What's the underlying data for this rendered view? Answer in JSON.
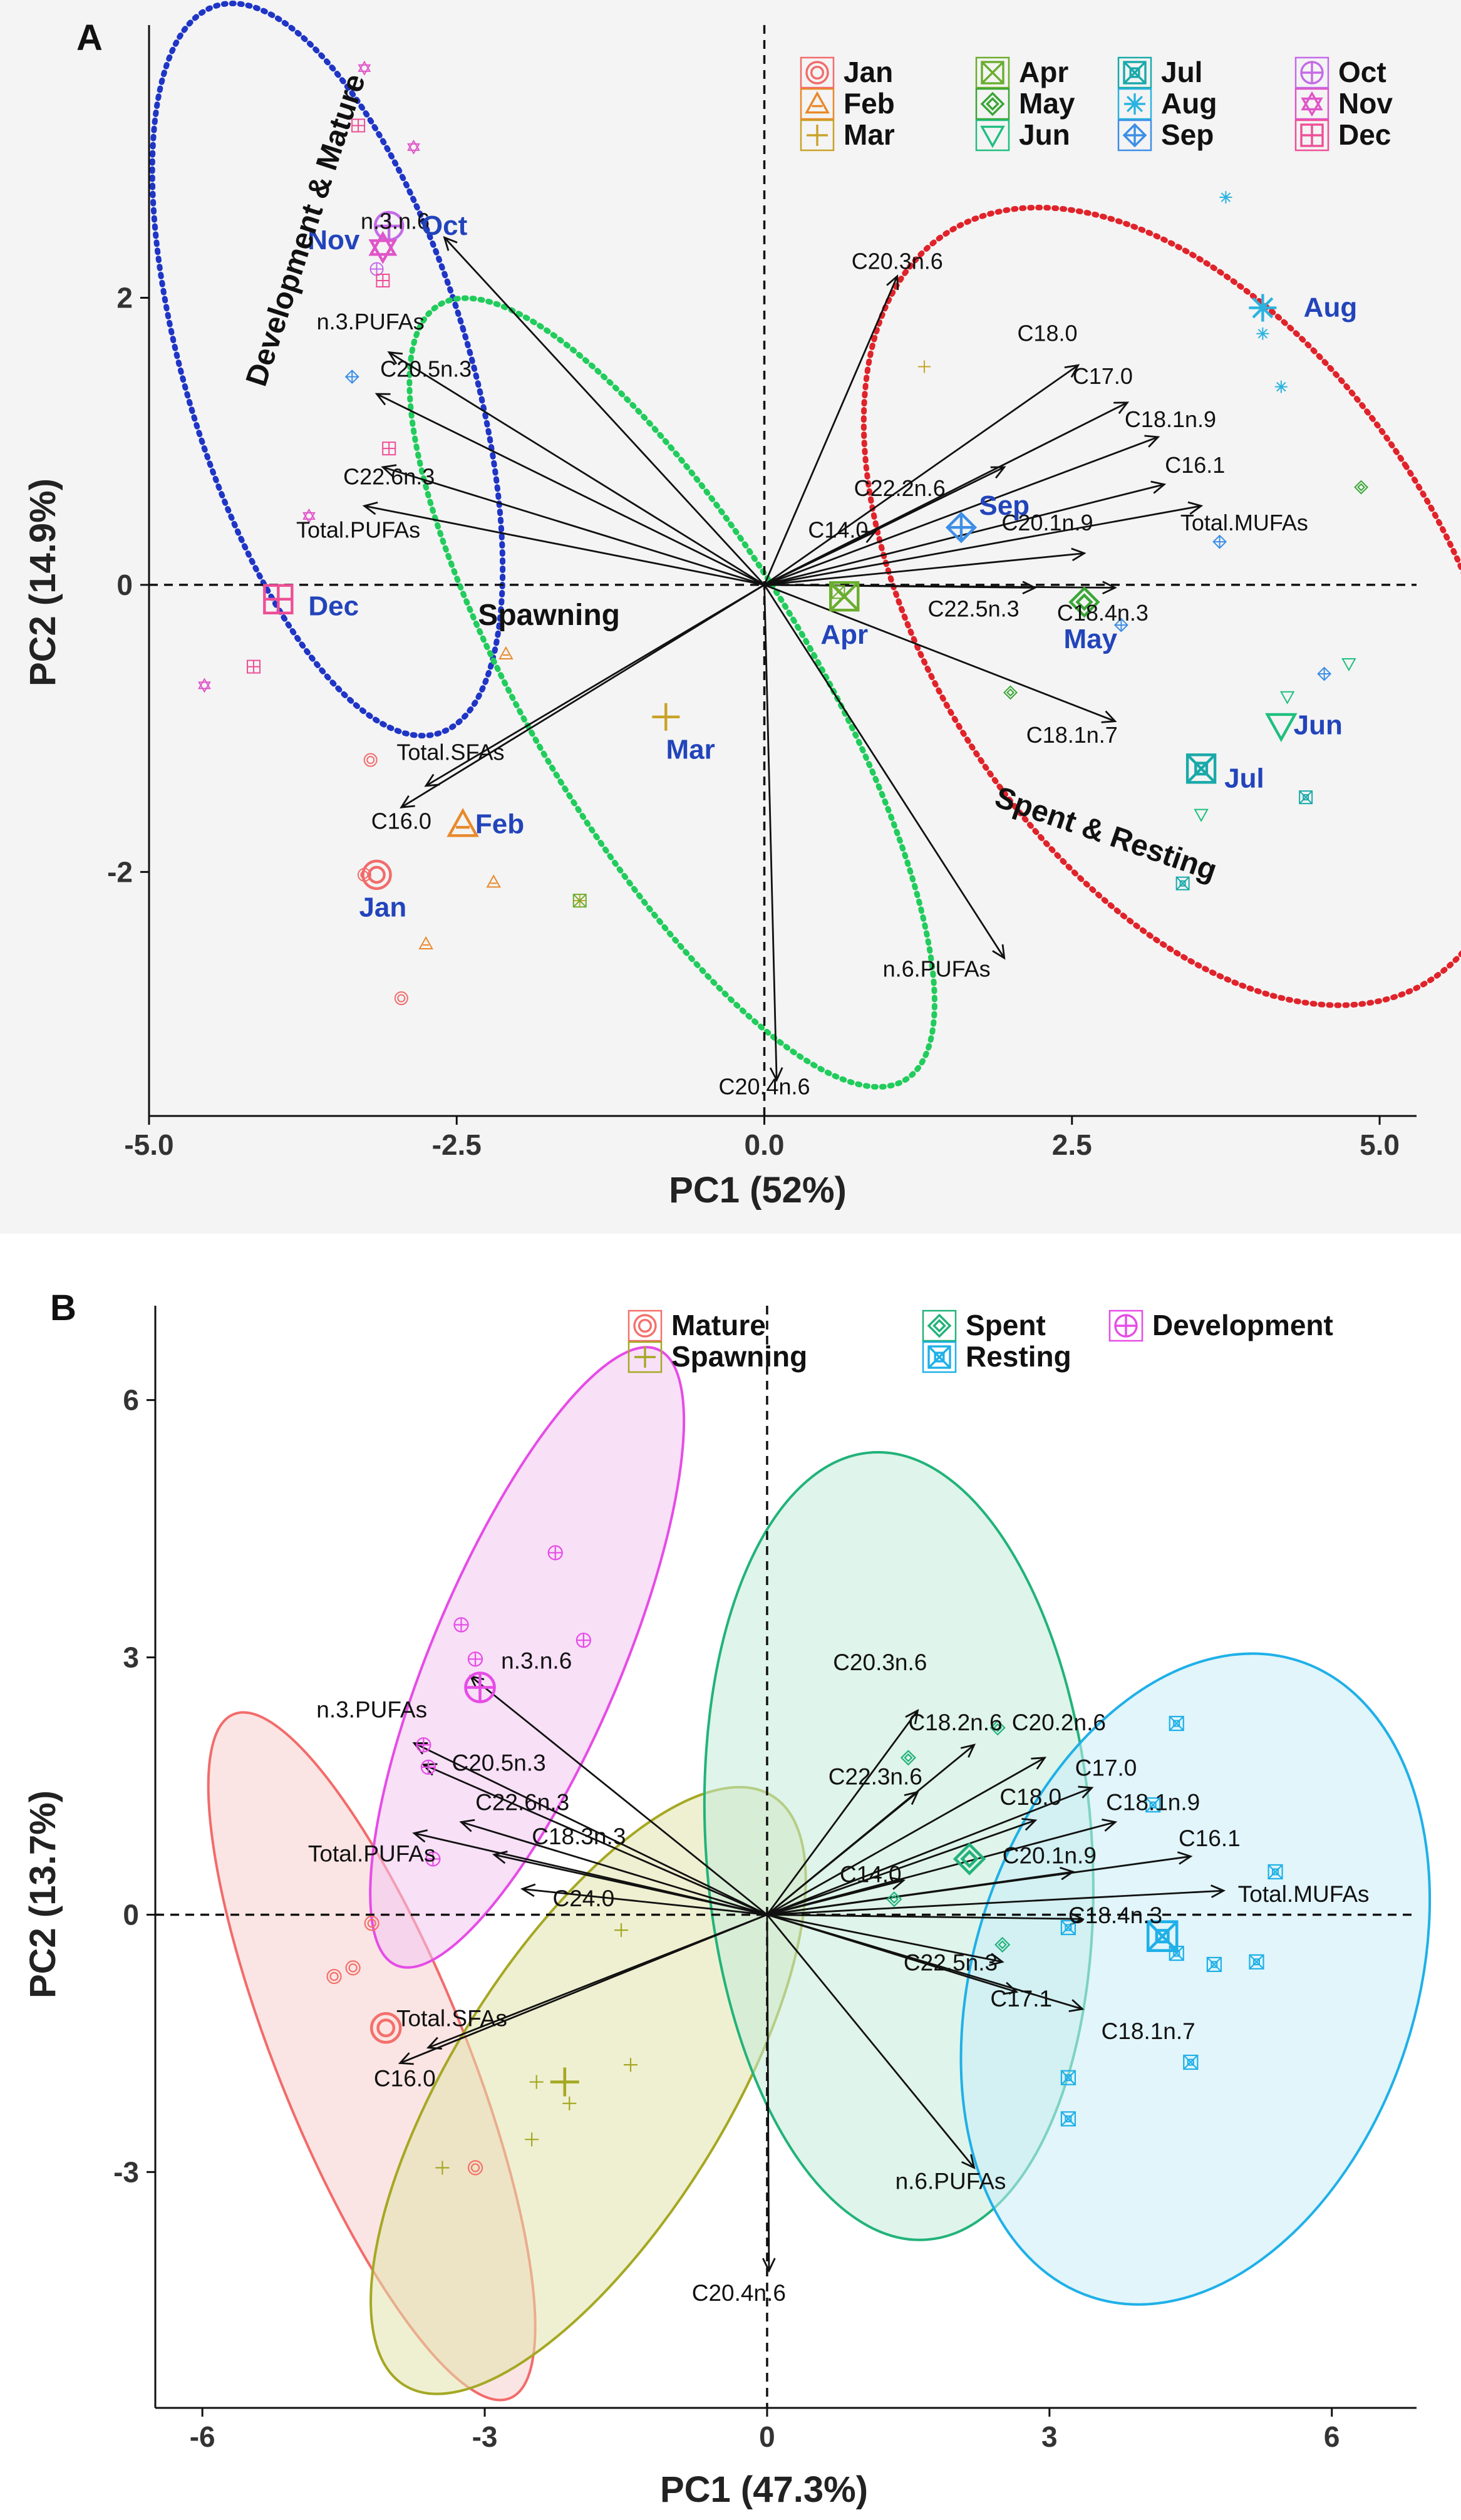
{
  "chart_data": [
    {
      "panel": "A",
      "type": "scatter",
      "xlabel": "PC1 (52%)",
      "ylabel": "PC2 (14.9%)",
      "xlim": [
        -5.0,
        5.3
      ],
      "ylim": [
        -3.7,
        3.9
      ],
      "xticks": [
        -5.0,
        -2.5,
        0.0,
        2.5,
        5.0
      ],
      "xtick_labels": [
        "-5.0",
        "-2.5",
        "0.0",
        "2.5",
        "5.0"
      ],
      "yticks": [
        -2,
        0,
        2
      ],
      "ytick_labels": [
        "-2",
        "0",
        "2"
      ],
      "legend": [
        "Jan",
        "Feb",
        "Mar",
        "Apr",
        "May",
        "Jun",
        "Jul",
        "Aug",
        "Sep",
        "Oct",
        "Nov",
        "Dec"
      ],
      "colors": {
        "Jan": "#f26b6b",
        "Feb": "#e8892a",
        "Mar": "#c9a227",
        "Apr": "#6aae2d",
        "May": "#3aa635",
        "Jun": "#1fbf7f",
        "Jul": "#1aa9a9",
        "Aug": "#2bb3e0",
        "Sep": "#3c8ee6",
        "Oct": "#c56ae8",
        "Nov": "#e055c9",
        "Dec": "#ee4f96"
      },
      "points": [
        {
          "group": "Jan",
          "x": -3.2,
          "y": -1.22
        },
        {
          "group": "Jan",
          "x": -3.25,
          "y": -2.02
        },
        {
          "group": "Jan",
          "x": -2.95,
          "y": -2.88
        },
        {
          "group": "Feb",
          "x": -2.1,
          "y": -0.48
        },
        {
          "group": "Feb",
          "x": -2.2,
          "y": -2.07
        },
        {
          "group": "Feb",
          "x": -2.75,
          "y": -2.5
        },
        {
          "group": "Mar",
          "x": 1.3,
          "y": 1.52
        },
        {
          "group": "Mar",
          "x": -1.5,
          "y": -2.2
        },
        {
          "group": "Apr",
          "x": -1.5,
          "y": -2.2
        },
        {
          "group": "Apr",
          "x": 0.6,
          "y": -0.05
        },
        {
          "group": "May",
          "x": 4.85,
          "y": 0.68
        },
        {
          "group": "May",
          "x": 2.0,
          "y": -0.75
        },
        {
          "group": "Jun",
          "x": 4.75,
          "y": -0.55
        },
        {
          "group": "Jun",
          "x": 4.25,
          "y": -0.78
        },
        {
          "group": "Jun",
          "x": 3.55,
          "y": -1.6
        },
        {
          "group": "Jul",
          "x": 3.4,
          "y": -2.08
        },
        {
          "group": "Jul",
          "x": 4.4,
          "y": -1.48
        },
        {
          "group": "Aug",
          "x": 3.75,
          "y": 2.7
        },
        {
          "group": "Aug",
          "x": 4.05,
          "y": 1.75
        },
        {
          "group": "Aug",
          "x": 4.2,
          "y": 1.38
        },
        {
          "group": "Sep",
          "x": -3.35,
          "y": 1.45
        },
        {
          "group": "Sep",
          "x": 3.7,
          "y": 0.3
        },
        {
          "group": "Sep",
          "x": 4.55,
          "y": -0.62
        },
        {
          "group": "Sep",
          "x": 2.9,
          "y": -0.28
        },
        {
          "group": "Oct",
          "x": -3.15,
          "y": 2.2
        },
        {
          "group": "Nov",
          "x": -3.25,
          "y": 3.6
        },
        {
          "group": "Nov",
          "x": -2.85,
          "y": 3.05
        },
        {
          "group": "Nov",
          "x": -3.7,
          "y": 0.48
        },
        {
          "group": "Nov",
          "x": -4.55,
          "y": -0.7
        },
        {
          "group": "Dec",
          "x": -3.3,
          "y": 3.2
        },
        {
          "group": "Dec",
          "x": -3.1,
          "y": 2.12
        },
        {
          "group": "Dec",
          "x": -3.05,
          "y": 0.95
        },
        {
          "group": "Dec",
          "x": -4.15,
          "y": -0.57
        }
      ],
      "centroids": [
        {
          "group": "Jan",
          "label": "Jan",
          "x": -3.15,
          "y": -2.02,
          "lx": -3.1,
          "ly": -2.25
        },
        {
          "group": "Feb",
          "label": "Feb",
          "x": -2.45,
          "y": -1.67,
          "lx": -2.15,
          "ly": -1.67
        },
        {
          "group": "Mar",
          "label": "Mar",
          "x": -0.8,
          "y": -0.92,
          "lx": -0.6,
          "ly": -1.15
        },
        {
          "group": "Apr",
          "label": "Apr",
          "x": 0.65,
          "y": -0.08,
          "lx": 0.65,
          "ly": -0.35
        },
        {
          "group": "May",
          "label": "May",
          "x": 2.6,
          "y": -0.12,
          "lx": 2.65,
          "ly": -0.38
        },
        {
          "group": "Jun",
          "label": "Jun",
          "x": 4.2,
          "y": -0.98,
          "lx": 4.5,
          "ly": -0.98
        },
        {
          "group": "Jul",
          "label": "Jul",
          "x": 3.55,
          "y": -1.28,
          "lx": 3.9,
          "ly": -1.35
        },
        {
          "group": "Aug",
          "label": "Aug",
          "x": 4.05,
          "y": 1.93,
          "lx": 4.6,
          "ly": 1.93
        },
        {
          "group": "Sep",
          "label": "Sep",
          "x": 1.6,
          "y": 0.4,
          "lx": 1.95,
          "ly": 0.55
        },
        {
          "group": "Oct",
          "label": "Oct",
          "x": -3.05,
          "y": 2.5,
          "lx": -2.6,
          "ly": 2.5
        },
        {
          "group": "Nov",
          "label": "Nov",
          "x": -3.1,
          "y": 2.35,
          "lx": -3.5,
          "ly": 2.4
        },
        {
          "group": "Dec",
          "label": "Dec",
          "x": -3.95,
          "y": -0.1,
          "lx": -3.5,
          "ly": -0.15
        }
      ],
      "vectors": [
        {
          "label": "C20.3n.6",
          "x": 1.08,
          "y": 2.15,
          "lx": 1.08,
          "ly": 2.2
        },
        {
          "label": "C18.0",
          "x": 2.55,
          "y": 1.53,
          "lx": 2.3,
          "ly": 1.7
        },
        {
          "label": "C17.0",
          "x": 2.95,
          "y": 1.27,
          "lx": 2.75,
          "ly": 1.4
        },
        {
          "label": "C18.1n.9",
          "x": 3.2,
          "y": 1.03,
          "lx": 3.3,
          "ly": 1.1
        },
        {
          "label": "C16.1",
          "x": 3.25,
          "y": 0.7,
          "lx": 3.5,
          "ly": 0.78
        },
        {
          "label": "C22.2n.6",
          "x": 1.95,
          "y": 0.82,
          "lx": 1.1,
          "ly": 0.62
        },
        {
          "label": "C14.0",
          "x": 0.9,
          "y": 0.37,
          "lx": 0.6,
          "ly": 0.33
        },
        {
          "label": "C20.1n.9",
          "x": 2.6,
          "y": 0.22,
          "lx": 2.3,
          "ly": 0.38
        },
        {
          "label": "Total.MUFAs",
          "x": 3.55,
          "y": 0.55,
          "lx": 3.9,
          "ly": 0.38
        },
        {
          "label": "C22.5n.3",
          "x": 2.2,
          "y": -0.02,
          "lx": 1.7,
          "ly": -0.22
        },
        {
          "label": "C18.4n.3",
          "x": 2.85,
          "y": -0.02,
          "lx": 2.75,
          "ly": -0.25
        },
        {
          "label": "C18.1n.7",
          "x": 2.85,
          "y": -0.95,
          "lx": 2.5,
          "ly": -1.1
        },
        {
          "label": "n.6.PUFAs",
          "x": 1.95,
          "y": -2.6,
          "lx": 1.4,
          "ly": -2.73
        },
        {
          "label": "C20.4n.6",
          "x": 0.1,
          "y": -3.45,
          "lx": 0.0,
          "ly": -3.55
        },
        {
          "label": "Total.SFAs",
          "x": -2.75,
          "y": -1.4,
          "lx": -2.55,
          "ly": -1.22
        },
        {
          "label": "C16.0",
          "x": -2.95,
          "y": -1.55,
          "lx": -2.95,
          "ly": -1.7
        },
        {
          "label": "C22.6n.3",
          "x": -3.1,
          "y": 0.82,
          "lx": -3.05,
          "ly": 0.7
        },
        {
          "label": "Total.PUFAs",
          "x": -3.25,
          "y": 0.55,
          "lx": -3.3,
          "ly": 0.33
        },
        {
          "label": "C20.5n.3",
          "x": -3.15,
          "y": 1.33,
          "lx": -2.75,
          "ly": 1.45
        },
        {
          "label": "n.3.PUFAs",
          "x": -3.05,
          "y": 1.62,
          "lx": -3.2,
          "ly": 1.78
        },
        {
          "label": "n.3.n.6",
          "x": -2.6,
          "y": 2.42,
          "lx": -3.0,
          "ly": 2.48
        }
      ],
      "region_labels": [
        {
          "text": "Development & Mature",
          "x": -3.65,
          "y": 2.45,
          "rotate": -72
        },
        {
          "text": "Spawning",
          "x": -1.75,
          "y": -0.28,
          "rotate": 0
        },
        {
          "text": "Spent & Resting",
          "x": 2.75,
          "y": -1.8,
          "rotate": 19
        }
      ],
      "ellipses": [
        {
          "name": "Development & Mature",
          "cx": -3.55,
          "cy": 1.5,
          "rx": 1.15,
          "ry": 2.65,
          "angle_deg": -17,
          "color": "#1f35c6"
        },
        {
          "name": "Spawning",
          "cx": -0.75,
          "cy": -0.75,
          "rx": 1.15,
          "ry": 3.15,
          "angle_deg": -31,
          "color": "#21cc5c"
        },
        {
          "name": "Spent & Resting",
          "cx": 3.45,
          "cy": -0.15,
          "rx": 2.1,
          "ry": 3.1,
          "angle_deg": -33,
          "color": "#e0232a"
        }
      ]
    },
    {
      "panel": "B",
      "type": "scatter",
      "xlabel": "PC1 (47.3%)",
      "ylabel": "PC2 (13.7%)",
      "xlim": [
        -6.5,
        6.9
      ],
      "ylim": [
        -5.75,
        7.1
      ],
      "xticks": [
        -6,
        -3,
        0,
        3,
        6
      ],
      "xtick_labels": [
        "-6",
        "-3",
        "0",
        "3",
        "6"
      ],
      "yticks": [
        -3,
        0,
        3,
        6
      ],
      "ytick_labels": [
        "-3",
        "0",
        "3",
        "6"
      ],
      "legend": [
        "Mature",
        "Spawning",
        "Spent",
        "Resting",
        "Development"
      ],
      "colors": {
        "Mature": "#f4706b",
        "Spawning": "#a5a823",
        "Spent": "#22b37a",
        "Resting": "#1fb0e8",
        "Development": "#e64ce6"
      },
      "points": [
        {
          "group": "Mature",
          "x": -4.6,
          "y": -0.72
        },
        {
          "group": "Mature",
          "x": -4.4,
          "y": -0.62
        },
        {
          "group": "Mature",
          "x": -4.2,
          "y": -0.1
        },
        {
          "group": "Mature",
          "x": -3.1,
          "y": -2.95
        },
        {
          "group": "Spawning",
          "x": -2.5,
          "y": -2.62
        },
        {
          "group": "Spawning",
          "x": -2.45,
          "y": -1.95
        },
        {
          "group": "Spawning",
          "x": -2.1,
          "y": -2.2
        },
        {
          "group": "Spawning",
          "x": -1.45,
          "y": -1.75
        },
        {
          "group": "Spawning",
          "x": -1.55,
          "y": -0.18
        },
        {
          "group": "Spawning",
          "x": -3.45,
          "y": -2.95
        },
        {
          "group": "Spent",
          "x": 1.5,
          "y": 1.83
        },
        {
          "group": "Spent",
          "x": 2.45,
          "y": 2.18
        },
        {
          "group": "Spent",
          "x": 1.35,
          "y": 0.18
        },
        {
          "group": "Spent",
          "x": 2.5,
          "y": -0.35
        },
        {
          "group": "Resting",
          "x": 4.35,
          "y": 2.23
        },
        {
          "group": "Resting",
          "x": 4.1,
          "y": 1.28
        },
        {
          "group": "Resting",
          "x": 5.4,
          "y": 0.5
        },
        {
          "group": "Resting",
          "x": 4.35,
          "y": -0.45
        },
        {
          "group": "Resting",
          "x": 4.75,
          "y": -0.58
        },
        {
          "group": "Resting",
          "x": 5.2,
          "y": -0.55
        },
        {
          "group": "Resting",
          "x": 4.5,
          "y": -1.72
        },
        {
          "group": "Resting",
          "x": 3.2,
          "y": -1.9
        },
        {
          "group": "Resting",
          "x": 3.2,
          "y": -2.38
        },
        {
          "group": "Resting",
          "x": 3.2,
          "y": -0.15
        },
        {
          "group": "Development",
          "x": -3.25,
          "y": 3.38
        },
        {
          "group": "Development",
          "x": -2.25,
          "y": 4.22
        },
        {
          "group": "Development",
          "x": -1.95,
          "y": 3.2
        },
        {
          "group": "Development",
          "x": -3.1,
          "y": 2.98
        },
        {
          "group": "Development",
          "x": -3.65,
          "y": 1.98
        },
        {
          "group": "Development",
          "x": -3.6,
          "y": 1.72
        },
        {
          "group": "Development",
          "x": -3.55,
          "y": 0.65
        }
      ],
      "centroids": [
        {
          "group": "Mature",
          "x": -4.05,
          "y": -1.32
        },
        {
          "group": "Spawning",
          "x": -2.15,
          "y": -1.95
        },
        {
          "group": "Spent",
          "x": 2.15,
          "y": 0.65
        },
        {
          "group": "Resting",
          "x": 4.2,
          "y": -0.25
        },
        {
          "group": "Development",
          "x": -3.05,
          "y": 2.65
        }
      ],
      "vectors": [
        {
          "label": "C20.3n.6",
          "x": 1.6,
          "y": 2.38,
          "lx": 1.2,
          "ly": 2.85
        },
        {
          "label": "C18.2n.6",
          "x": 2.2,
          "y": 1.98,
          "lx": 2.0,
          "ly": 2.15
        },
        {
          "label": "C20.2n.6",
          "x": 2.95,
          "y": 1.83,
          "lx": 3.1,
          "ly": 2.15
        },
        {
          "label": "C22.3n.6",
          "x": 1.6,
          "y": 1.43,
          "lx": 1.15,
          "ly": 1.52
        },
        {
          "label": "C17.0",
          "x": 3.45,
          "y": 1.48,
          "lx": 3.6,
          "ly": 1.62
        },
        {
          "label": "C18.0",
          "x": 2.85,
          "y": 1.1,
          "lx": 2.8,
          "ly": 1.28
        },
        {
          "label": "C18.1n.9",
          "x": 3.7,
          "y": 1.08,
          "lx": 4.1,
          "ly": 1.22
        },
        {
          "label": "C16.1",
          "x": 4.5,
          "y": 0.68,
          "lx": 4.7,
          "ly": 0.8
        },
        {
          "label": "C14.0",
          "x": 1.45,
          "y": 0.4,
          "lx": 1.1,
          "ly": 0.38
        },
        {
          "label": "C20.1n.9",
          "x": 3.25,
          "y": 0.5,
          "lx": 3.0,
          "ly": 0.6
        },
        {
          "label": "Total.MUFAs",
          "x": 4.85,
          "y": 0.28,
          "lx": 5.7,
          "ly": 0.15
        },
        {
          "label": "C18.4n.3",
          "x": 3.35,
          "y": -0.05,
          "lx": 3.7,
          "ly": -0.1
        },
        {
          "label": "C22.5n.3",
          "x": 2.5,
          "y": -0.55,
          "lx": 1.95,
          "ly": -0.65
        },
        {
          "label": "C17.1",
          "x": 2.65,
          "y": -0.9,
          "lx": 2.7,
          "ly": -1.07
        },
        {
          "label": "C18.1n.7",
          "x": 3.35,
          "y": -1.1,
          "lx": 4.05,
          "ly": -1.45
        },
        {
          "label": "n.6.PUFAs",
          "x": 2.2,
          "y": -2.95,
          "lx": 1.95,
          "ly": -3.2
        },
        {
          "label": "C20.4n.6",
          "x": 0.02,
          "y": -4.15,
          "lx": -0.3,
          "ly": -4.5
        },
        {
          "label": "n.3.n.6",
          "x": -3.15,
          "y": 2.78,
          "lx": -2.45,
          "ly": 2.87
        },
        {
          "label": "n.3.PUFAs",
          "x": -3.75,
          "y": 2.0,
          "lx": -4.2,
          "ly": 2.3
        },
        {
          "label": "C20.5n.3",
          "x": -3.65,
          "y": 1.75,
          "lx": -2.85,
          "ly": 1.68
        },
        {
          "label": "C22.6n.3",
          "x": -3.25,
          "y": 1.08,
          "lx": -2.6,
          "ly": 1.22
        },
        {
          "label": "Total.PUFAs",
          "x": -3.75,
          "y": 0.95,
          "lx": -4.2,
          "ly": 0.62
        },
        {
          "label": "C18.3n.3",
          "x": -2.9,
          "y": 0.7,
          "lx": -2.0,
          "ly": 0.82
        },
        {
          "label": "C24.0",
          "x": -2.6,
          "y": 0.3,
          "lx": -1.95,
          "ly": 0.1
        },
        {
          "label": "Total.SFAs",
          "x": -3.6,
          "y": -1.55,
          "lx": -3.35,
          "ly": -1.3
        },
        {
          "label": "C16.0",
          "x": -3.9,
          "y": -1.73,
          "lx": -3.85,
          "ly": -2.0
        }
      ],
      "ellipses": [
        {
          "name": "Mature",
          "cx": -4.2,
          "cy": -1.65,
          "rx": 1.0,
          "ry": 4.3,
          "angle_deg": -22,
          "color": "#f26b6b",
          "fill": "#f8cfcd"
        },
        {
          "name": "Development",
          "cx": -2.55,
          "cy": 3.0,
          "rx": 1.0,
          "ry": 3.9,
          "angle_deg": 23,
          "color": "#e64ce6",
          "fill": "#f3c6f0"
        },
        {
          "name": "Spawning",
          "cx": -1.9,
          "cy": -2.05,
          "rx": 1.45,
          "ry": 4.05,
          "angle_deg": 32,
          "color": "#a5a823",
          "fill": "#e2e3ab"
        },
        {
          "name": "Spent",
          "cx": 1.4,
          "cy": 0.8,
          "rx": 2.05,
          "ry": 4.6,
          "angle_deg": -4,
          "color": "#22b37a",
          "fill": "#c5ebd9"
        },
        {
          "name": "Resting",
          "cx": 4.55,
          "cy": -0.75,
          "rx": 2.35,
          "ry": 3.9,
          "angle_deg": 18,
          "color": "#1fb0e8",
          "fill": "#c9ecf8"
        }
      ]
    }
  ]
}
